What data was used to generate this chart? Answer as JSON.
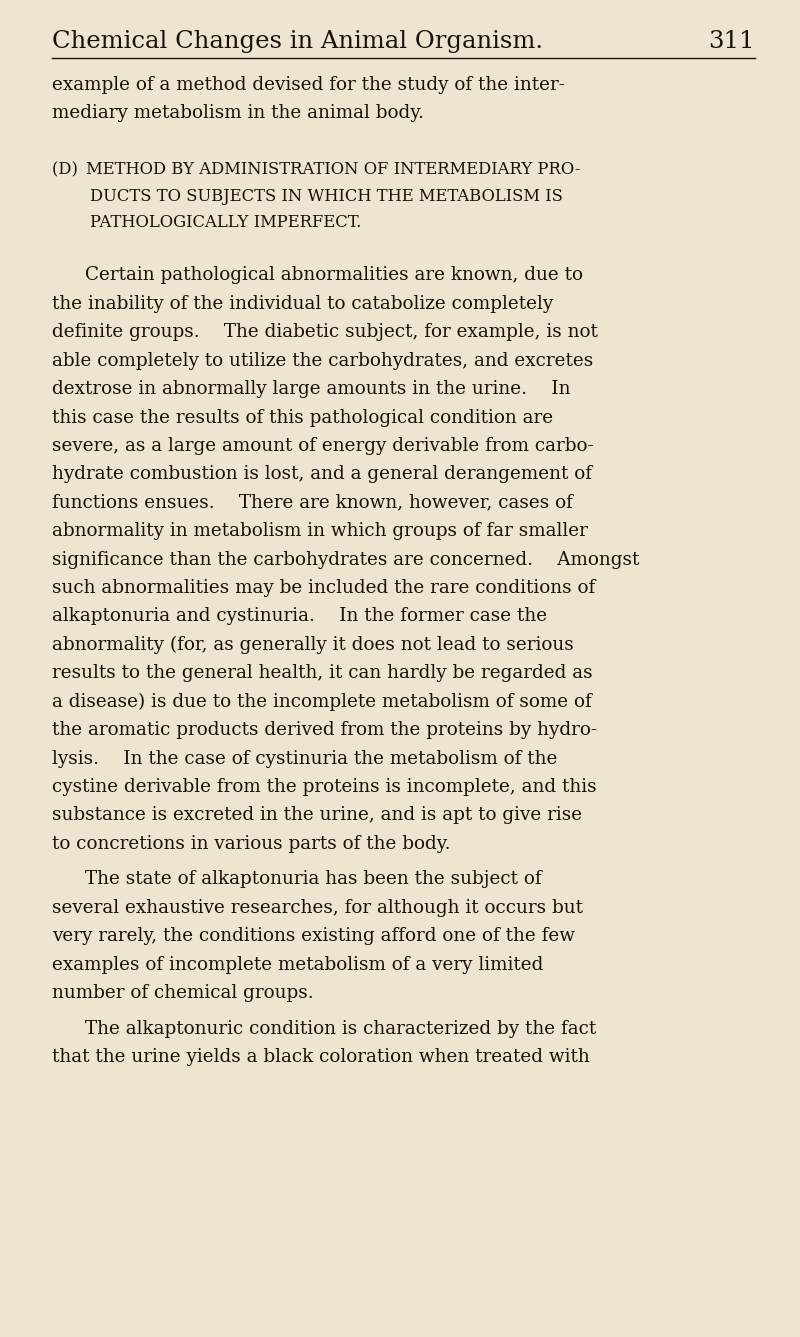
{
  "bg_color": "#ede5d0",
  "text_color": "#1c1008",
  "page_width": 8.0,
  "page_height": 13.37,
  "dpi": 100,
  "header_title": "Chemical Changes in Animal Organism.",
  "header_page": "311",
  "header_fontsize": 17.5,
  "body_fontsize": 13.2,
  "section_fontsize": 11.8,
  "content": [
    {
      "type": "para_noindent",
      "text": "example of a method devised for the study of the inter-\nmediary metabolism in the animal body."
    },
    {
      "type": "blank",
      "lines": 1.0
    },
    {
      "type": "section_head",
      "lines": [
        "(D) METHOD BY ADMINISTRATION OF INTERMEDIARY PRO-",
        "DUCTS TO SUBJECTS IN WHICH THE METABOLISM IS",
        "PATHOLOGICALLY IMPERFECT."
      ]
    },
    {
      "type": "blank",
      "lines": 0.9
    },
    {
      "type": "para_indent",
      "text": "Certain pathological abnormalities are known, due to\nthe inability of the individual to catabolize completely\ndefinite groups.  The diabetic subject, for example, is not\nable completely to utilize the carbohydrates, and excretes\ndextrose in abnormally large amounts in the urine.  In\nthis case the results of this pathological condition are\nsevere, as a large amount of energy derivable from carbo-\nhydrate combustion is lost, and a general derangement of\nfunctions ensues.  There are known, however, cases of\nabnormality in metabolism in which groups of far smaller\nsignificance than the carbohydrates are concerned.  Amongst\nsuch abnormalities may be included the rare conditions of\nalkaptonuria and cystinuria.  In the former case the\nabnormality (for, as generally it does not lead to serious\nresults to the general health, it can hardly be regarded as\na disease) is due to the incomplete metabolism of some of\nthe aromatic products derived from the proteins by hydro-\nlysis.  In the case of cystinuria the metabolism of the\ncystine derivable from the proteins is incomplete, and this\nsubstance is excreted in the urine, and is apt to give rise\nto concretions in various parts of the body."
    },
    {
      "type": "para_indent",
      "text": "The state of alkaptonuria has been the subject of\nseveral exhaustive researches, for although it occurs but\nvery rarely, the conditions existing afford one of the few\nexamples of incomplete metabolism of a very limited\nnumber of chemical groups."
    },
    {
      "type": "para_indent",
      "text": "The alkaptonuric condition is characterized by the fact\nthat the urine yields a black coloration when treated with"
    }
  ]
}
